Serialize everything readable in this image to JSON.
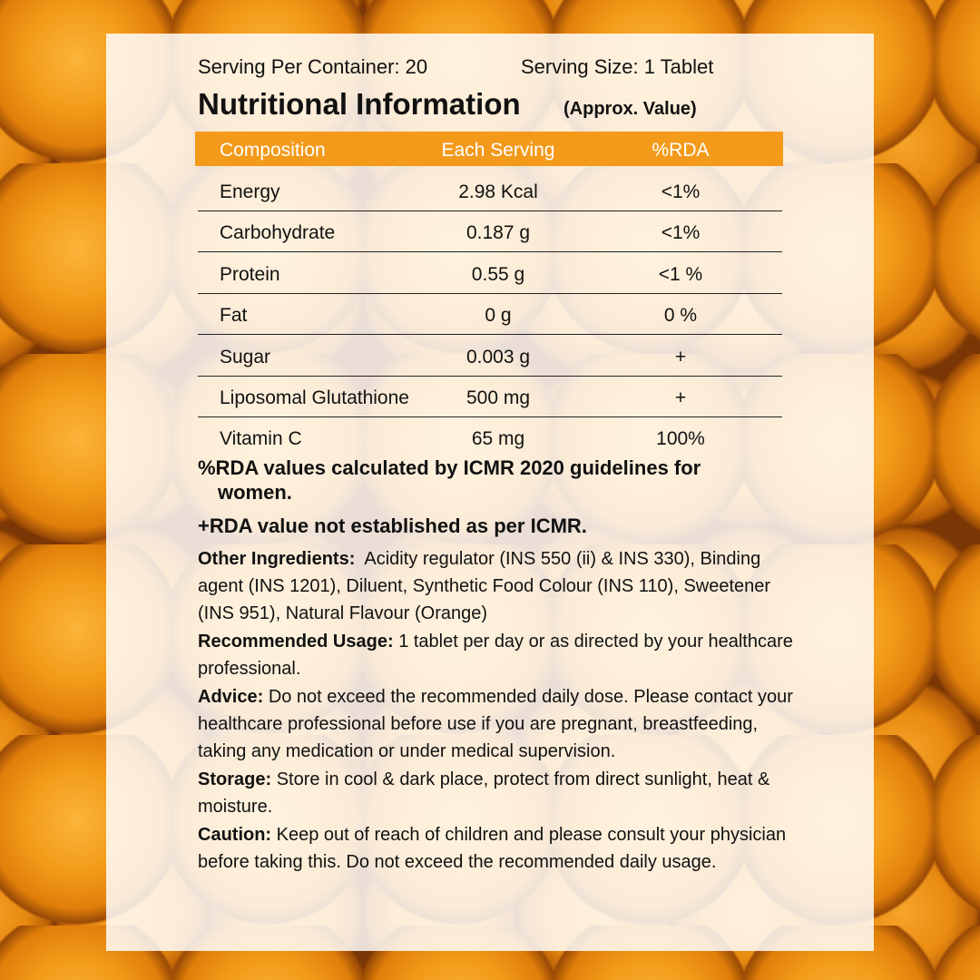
{
  "header": {
    "servings": "Serving Per Container: 20",
    "serving_size": "Serving Size: 1 Tablet",
    "title": "Nutritional Information",
    "subtitle": "(Approx. Value)"
  },
  "table": {
    "columns": [
      "Composition",
      "Each Serving",
      "%RDA"
    ],
    "rows": [
      [
        "Energy",
        "2.98 Kcal",
        "<1%"
      ],
      [
        "Carbohydrate",
        "0.187 g",
        "<1%"
      ],
      [
        "Protein",
        "0.55 g",
        "<1 %"
      ],
      [
        "Fat",
        "0 g",
        "0 %"
      ],
      [
        "Sugar",
        "0.003 g",
        "+"
      ],
      [
        "Liposomal Glutathione",
        "500 mg",
        "+"
      ],
      [
        "Vitamin C",
        "65 mg",
        "100%"
      ]
    ]
  },
  "notes": [
    "%RDA values calculated by ICMR 2020 guidelines for women.",
    "+RDA value not established as per ICMR."
  ],
  "sections": [
    {
      "label": "Other Ingredients:",
      "text": "Acidity regulator (INS 550 (ii) & INS 330), Binding agent (INS 1201), Diluent, Synthetic Food Colour (INS 110), Sweetener (INS 951), Natural Flavour (Orange)"
    },
    {
      "label": "Recommended Usage:",
      "text": "1 tablet per day or as directed by your healthcare professional."
    },
    {
      "label": "Advice:",
      "text": "Do not exceed the recommended daily dose. Please contact your healthcare professional before use if you are pregnant, breastfeeding, taking any medication or under medical supervision."
    },
    {
      "label": "Storage:",
      "text": "Store in cool & dark place, protect from direct sunlight, heat & moisture."
    },
    {
      "label": "Caution:",
      "text": "Keep out of reach of children and please consult your physician before taking this. Do not exceed the recommended daily usage."
    }
  ]
}
